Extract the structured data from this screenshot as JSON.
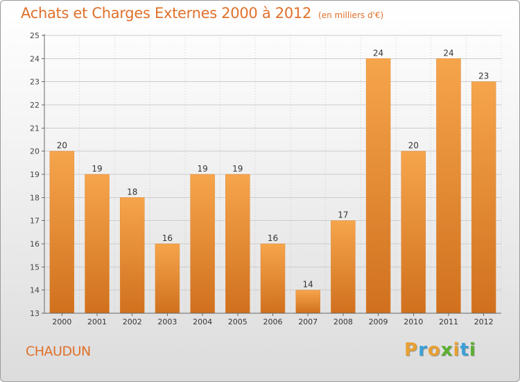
{
  "header": {
    "title": "Achats et Charges Externes 2000 à 2012",
    "subtitle": "(en milliers d'€)"
  },
  "footer": {
    "city": "CHAUDUN",
    "brand_letters": [
      "P",
      "r",
      "o",
      "x",
      "i",
      "t",
      "i"
    ],
    "brand_colors": [
      "#e8a030",
      "#3aa0d8",
      "#e8a030",
      "#5cb030",
      "#e8a030",
      "#3aa0d8",
      "#5cb030"
    ]
  },
  "colors": {
    "accent": "#e0702a",
    "bar_top": "#f6a54c",
    "bar_bottom": "#d0701e",
    "grid": "#cccccc"
  },
  "chart_data": {
    "type": "bar",
    "categories": [
      "2000",
      "2001",
      "2002",
      "2003",
      "2004",
      "2005",
      "2006",
      "2007",
      "2008",
      "2009",
      "2010",
      "2011",
      "2012"
    ],
    "values": [
      20,
      19,
      18,
      16,
      19,
      19,
      16,
      14,
      17,
      24,
      20,
      24,
      23
    ],
    "ylim": [
      13,
      25
    ],
    "yticks": [
      13,
      14,
      15,
      16,
      17,
      18,
      19,
      20,
      21,
      22,
      23,
      24,
      25
    ],
    "grid": true,
    "data_labels": true
  }
}
